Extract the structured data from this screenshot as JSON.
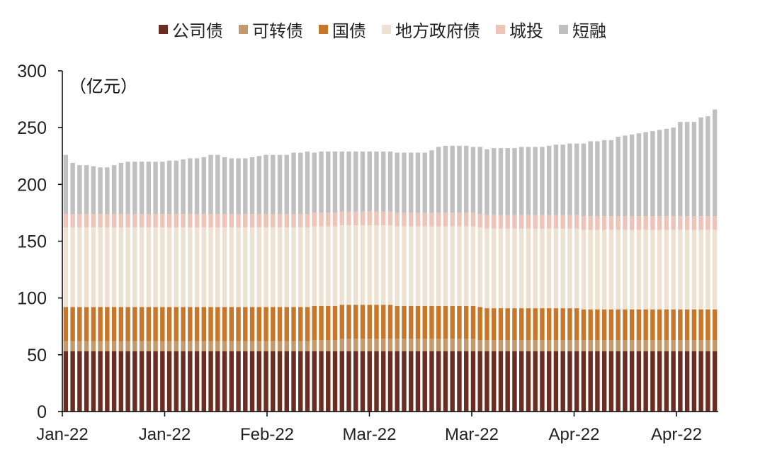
{
  "chart_data": {
    "type": "bar",
    "stacked": true,
    "unit_label": "（亿元）",
    "ylim": [
      0,
      300
    ],
    "yticks": [
      "0",
      "50",
      "100",
      "150",
      "200",
      "250",
      "300"
    ],
    "x_tick_labels": [
      "Jan-22",
      "Jan-22",
      "Feb-22",
      "Mar-22",
      "Mar-22",
      "Apr-22",
      "Apr-22"
    ],
    "legend_position": "top",
    "series": [
      {
        "name": "公司债",
        "color": "#6b2d22",
        "values": [
          53,
          53,
          53,
          53,
          53,
          53,
          53,
          53,
          53,
          53,
          53,
          53,
          53,
          53,
          53,
          53,
          53,
          53,
          53,
          53,
          53,
          53,
          53,
          53,
          53,
          53,
          53,
          53,
          53,
          53,
          53,
          53,
          53,
          53,
          53,
          53,
          53,
          53,
          53,
          53,
          53,
          53,
          53,
          53,
          53,
          53,
          53,
          53,
          53,
          53,
          53,
          53,
          53,
          53,
          53,
          53,
          53,
          53,
          53,
          53,
          53,
          53,
          53,
          53,
          53,
          53,
          53,
          53,
          53,
          53,
          53,
          53,
          53,
          53,
          53,
          53,
          53,
          53,
          53,
          53,
          53,
          53,
          53,
          53,
          53,
          53,
          53,
          53,
          53,
          53,
          53,
          53,
          53,
          53,
          53
        ]
      },
      {
        "name": "可转债",
        "color": "#c49a6c",
        "values": [
          9,
          9,
          9,
          9,
          9,
          9,
          9,
          9,
          9,
          9,
          9,
          9,
          9,
          9,
          9,
          9,
          9,
          9,
          9,
          9,
          9,
          9,
          9,
          9,
          9,
          9,
          9,
          9,
          9,
          9,
          9,
          9,
          9,
          9,
          9,
          9,
          10,
          10,
          10,
          10,
          11,
          11,
          11,
          11,
          11,
          11,
          11,
          11,
          11,
          11,
          11,
          11,
          11,
          11,
          11,
          11,
          11,
          11,
          11,
          11,
          10,
          10,
          10,
          10,
          10,
          10,
          10,
          10,
          10,
          10,
          10,
          10,
          10,
          10,
          10,
          10,
          10,
          10,
          10,
          10,
          10,
          10,
          10,
          10,
          10,
          10,
          10,
          10,
          10,
          10,
          10,
          10,
          10,
          10,
          10
        ]
      },
      {
        "name": "国债",
        "color": "#c8772a",
        "values": [
          30,
          30,
          30,
          30,
          30,
          30,
          30,
          30,
          30,
          30,
          30,
          30,
          30,
          30,
          30,
          30,
          30,
          30,
          30,
          30,
          30,
          30,
          30,
          30,
          30,
          30,
          30,
          30,
          30,
          30,
          30,
          30,
          30,
          30,
          30,
          30,
          30,
          30,
          30,
          30,
          30,
          30,
          30,
          30,
          30,
          30,
          30,
          30,
          29,
          29,
          29,
          29,
          29,
          29,
          29,
          29,
          29,
          29,
          29,
          29,
          29,
          28,
          28,
          28,
          28,
          28,
          28,
          28,
          28,
          28,
          28,
          28,
          28,
          28,
          28,
          27,
          27,
          27,
          27,
          27,
          27,
          27,
          27,
          27,
          27,
          27,
          27,
          27,
          27,
          27,
          27,
          27,
          27,
          27,
          27
        ]
      },
      {
        "name": "地方政府债",
        "color": "#ede1d1",
        "values": [
          70,
          70,
          70,
          70,
          70,
          70,
          70,
          70,
          70,
          70,
          70,
          70,
          70,
          70,
          70,
          70,
          70,
          70,
          70,
          70,
          70,
          70,
          70,
          70,
          70,
          70,
          70,
          70,
          70,
          70,
          70,
          70,
          70,
          70,
          70,
          70,
          70,
          70,
          70,
          70,
          70,
          70,
          70,
          70,
          70,
          70,
          70,
          70,
          70,
          70,
          70,
          70,
          70,
          70,
          70,
          70,
          70,
          70,
          70,
          70,
          70,
          70,
          70,
          70,
          70,
          70,
          70,
          70,
          70,
          70,
          70,
          70,
          70,
          70,
          70,
          70,
          70,
          70,
          70,
          70,
          70,
          70,
          70,
          70,
          70,
          70,
          70,
          70,
          70,
          70,
          70,
          70,
          70,
          70,
          70
        ]
      },
      {
        "name": "城投",
        "color": "#eec4b8",
        "values": [
          12,
          12,
          12,
          12,
          12,
          12,
          12,
          12,
          12,
          12,
          12,
          12,
          12,
          12,
          12,
          12,
          12,
          12,
          12,
          12,
          12,
          12,
          12,
          12,
          12,
          12,
          12,
          12,
          12,
          12,
          12,
          12,
          12,
          12,
          12,
          12,
          12,
          12,
          12,
          12,
          12,
          12,
          12,
          12,
          12,
          12,
          12,
          12,
          12,
          12,
          12,
          12,
          12,
          12,
          12,
          12,
          12,
          12,
          12,
          12,
          12,
          12,
          12,
          12,
          12,
          12,
          12,
          12,
          12,
          12,
          12,
          12,
          12,
          12,
          12,
          12,
          12,
          12,
          12,
          12,
          12,
          12,
          12,
          12,
          12,
          12,
          12,
          12,
          12,
          12,
          12,
          12,
          12,
          12,
          12
        ]
      },
      {
        "name": "短融",
        "color": "#c0c0c0",
        "values": [
          52,
          45,
          43,
          43,
          42,
          41,
          41,
          43,
          45,
          46,
          46,
          46,
          46,
          46,
          46,
          47,
          47,
          48,
          49,
          49,
          50,
          52,
          52,
          50,
          49,
          49,
          49,
          50,
          51,
          52,
          52,
          52,
          52,
          54,
          54,
          55,
          53,
          54,
          54,
          54,
          53,
          53,
          53,
          53,
          53,
          53,
          53,
          53,
          53,
          53,
          53,
          53,
          53,
          55,
          58,
          59,
          59,
          59,
          59,
          58,
          59,
          58,
          59,
          59,
          59,
          59,
          60,
          60,
          60,
          60,
          61,
          62,
          62,
          63,
          63,
          64,
          66,
          66,
          67,
          67,
          70,
          71,
          72,
          73,
          74,
          75,
          76,
          77,
          78,
          83,
          83,
          83,
          87,
          88,
          94
        ]
      }
    ]
  }
}
